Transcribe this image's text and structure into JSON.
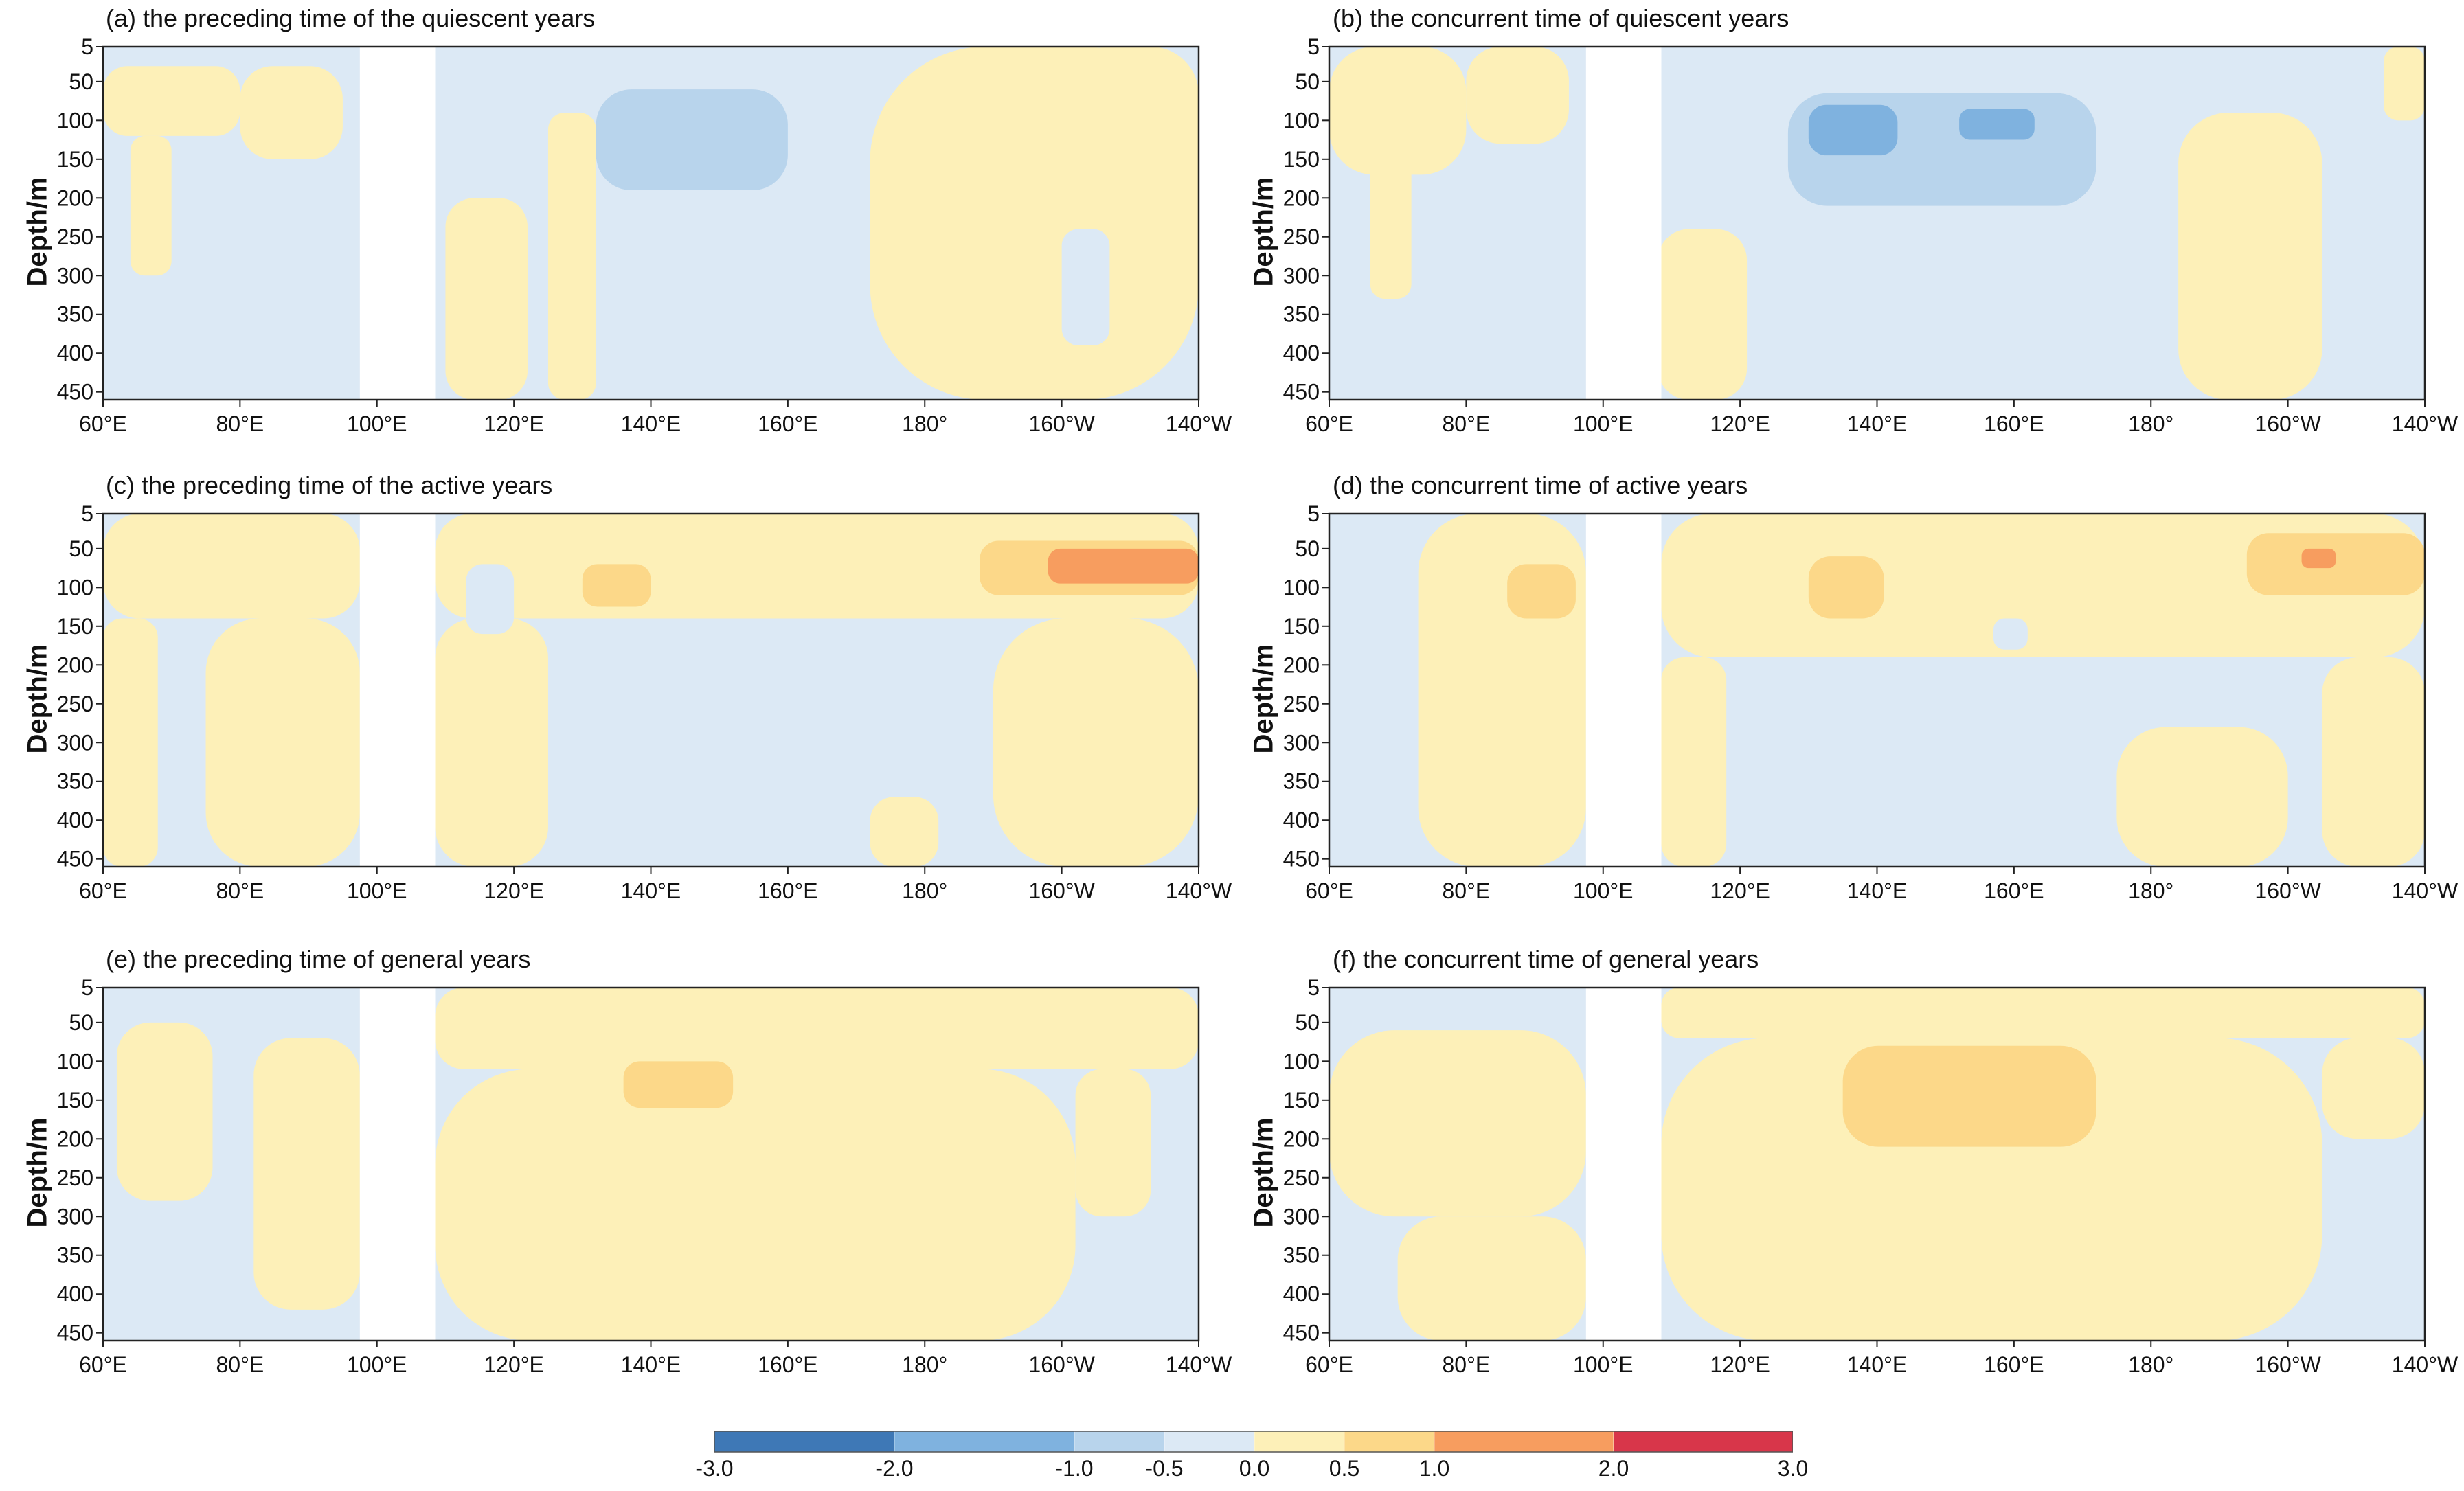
{
  "chart_data": [
    {
      "type": "heatmap",
      "id": "a",
      "title": "(a) the preceding time of the quiescent years",
      "ylabel": "Depth/m",
      "yticks": [
        "5",
        "50",
        "100",
        "150",
        "200",
        "250",
        "300",
        "350",
        "400",
        "450"
      ],
      "xticks": [
        "60°E",
        "80°E",
        "100°E",
        "120°E",
        "140°E",
        "160°E",
        "180°",
        "160°W",
        "140°W"
      ],
      "xlim_deg": [
        60,
        220
      ],
      "ylim_m": [
        5,
        460
      ],
      "land_gap_deg": [
        97.5,
        108.5
      ],
      "background_level": "-0.5~0.0",
      "anomalies": [
        {
          "level": "0.0~0.5",
          "lon": [
            60,
            80
          ],
          "depth": [
            30,
            120
          ]
        },
        {
          "level": "0.0~0.5",
          "lon": [
            64,
            70
          ],
          "depth": [
            120,
            300
          ]
        },
        {
          "level": "0.0~0.5",
          "lon": [
            80,
            95
          ],
          "depth": [
            30,
            150
          ]
        },
        {
          "level": "0.0~0.5",
          "lon": [
            110,
            122
          ],
          "depth": [
            200,
            460
          ]
        },
        {
          "level": "0.0~0.5",
          "lon": [
            125,
            132
          ],
          "depth": [
            90,
            460
          ]
        },
        {
          "level": "0.0~0.5",
          "lon": [
            172,
            220
          ],
          "depth": [
            5,
            460
          ]
        },
        {
          "level": "0.0~0.5",
          "lon": [
            200,
            220
          ],
          "depth": [
            5,
            200
          ]
        },
        {
          "level": "-1.0~-0.5",
          "lon": [
            132,
            160
          ],
          "depth": [
            60,
            190
          ]
        },
        {
          "level": "-0.5~0.0",
          "lon": [
            200,
            207
          ],
          "depth": [
            240,
            390
          ]
        }
      ]
    },
    {
      "type": "heatmap",
      "id": "b",
      "title": "(b) the concurrent time of quiescent years",
      "ylabel": "Depth/m",
      "yticks": [
        "5",
        "50",
        "100",
        "150",
        "200",
        "250",
        "300",
        "350",
        "400",
        "450"
      ],
      "xticks": [
        "60°E",
        "80°E",
        "100°E",
        "120°E",
        "140°E",
        "160°E",
        "180°",
        "160°W",
        "140°W"
      ],
      "xlim_deg": [
        60,
        220
      ],
      "ylim_m": [
        5,
        460
      ],
      "land_gap_deg": [
        97.5,
        108.5
      ],
      "background_level": "-0.5~0.0",
      "anomalies": [
        {
          "level": "0.0~0.5",
          "lon": [
            60,
            80
          ],
          "depth": [
            5,
            170
          ]
        },
        {
          "level": "0.0~0.5",
          "lon": [
            66,
            72
          ],
          "depth": [
            150,
            330
          ]
        },
        {
          "level": "0.0~0.5",
          "lon": [
            80,
            95
          ],
          "depth": [
            5,
            130
          ]
        },
        {
          "level": "0.0~0.5",
          "lon": [
            108,
            121
          ],
          "depth": [
            240,
            460
          ]
        },
        {
          "level": "0.0~0.5",
          "lon": [
            184,
            205
          ],
          "depth": [
            90,
            460
          ]
        },
        {
          "level": "0.0~0.5",
          "lon": [
            214,
            220
          ],
          "depth": [
            5,
            100
          ]
        },
        {
          "level": "-1.0~-0.5",
          "lon": [
            127,
            172
          ],
          "depth": [
            65,
            210
          ]
        },
        {
          "level": "-2.0~-1.0",
          "lon": [
            130,
            143
          ],
          "depth": [
            80,
            145
          ]
        },
        {
          "level": "-2.0~-1.0",
          "lon": [
            152,
            163
          ],
          "depth": [
            85,
            125
          ]
        }
      ]
    },
    {
      "type": "heatmap",
      "id": "c",
      "title": "(c) the preceding time of the active years",
      "ylabel": "Depth/m",
      "yticks": [
        "5",
        "50",
        "100",
        "150",
        "200",
        "250",
        "300",
        "350",
        "400",
        "450"
      ],
      "xticks": [
        "60°E",
        "80°E",
        "100°E",
        "120°E",
        "140°E",
        "160°E",
        "180°",
        "160°W",
        "140°W"
      ],
      "xlim_deg": [
        60,
        220
      ],
      "ylim_m": [
        5,
        460
      ],
      "land_gap_deg": [
        97.5,
        108.5
      ],
      "background_level": "-0.5~0.0",
      "anomalies": [
        {
          "level": "0.0~0.5",
          "lon": [
            60,
            97.5
          ],
          "depth": [
            5,
            140
          ]
        },
        {
          "level": "0.0~0.5",
          "lon": [
            60,
            68
          ],
          "depth": [
            140,
            460
          ]
        },
        {
          "level": "0.0~0.5",
          "lon": [
            75,
            97.5
          ],
          "depth": [
            140,
            460
          ]
        },
        {
          "level": "0.0~0.5",
          "lon": [
            108.5,
            220
          ],
          "depth": [
            5,
            140
          ]
        },
        {
          "level": "0.0~0.5",
          "lon": [
            108.5,
            125
          ],
          "depth": [
            140,
            460
          ]
        },
        {
          "level": "0.0~0.5",
          "lon": [
            190,
            220
          ],
          "depth": [
            140,
            460
          ]
        },
        {
          "level": "0.0~0.5",
          "lon": [
            172,
            182
          ],
          "depth": [
            370,
            460
          ]
        },
        {
          "level": "-0.5~0.0",
          "lon": [
            113,
            120
          ],
          "depth": [
            70,
            160
          ]
        },
        {
          "level": "0.5~1.0",
          "lon": [
            130,
            140
          ],
          "depth": [
            70,
            125
          ]
        },
        {
          "level": "0.5~1.0",
          "lon": [
            188,
            220
          ],
          "depth": [
            40,
            110
          ]
        },
        {
          "level": "1.0~2.0",
          "lon": [
            198,
            220
          ],
          "depth": [
            50,
            95
          ]
        }
      ]
    },
    {
      "type": "heatmap",
      "id": "d",
      "title": "(d) the concurrent time of active years",
      "ylabel": "Depth/m",
      "yticks": [
        "5",
        "50",
        "100",
        "150",
        "200",
        "250",
        "300",
        "350",
        "400",
        "450"
      ],
      "xticks": [
        "60°E",
        "80°E",
        "100°E",
        "120°E",
        "140°E",
        "160°E",
        "180°",
        "160°W",
        "140°W"
      ],
      "xlim_deg": [
        60,
        220
      ],
      "ylim_m": [
        5,
        460
      ],
      "land_gap_deg": [
        97.5,
        108.5
      ],
      "background_level": "-0.5~0.0",
      "anomalies": [
        {
          "level": "0.0~0.5",
          "lon": [
            73,
            97.5
          ],
          "depth": [
            5,
            460
          ]
        },
        {
          "level": "0.0~0.5",
          "lon": [
            108.5,
            220
          ],
          "depth": [
            5,
            190
          ]
        },
        {
          "level": "0.0~0.5",
          "lon": [
            108.5,
            118
          ],
          "depth": [
            190,
            460
          ]
        },
        {
          "level": "0.0~0.5",
          "lon": [
            175,
            200
          ],
          "depth": [
            280,
            460
          ]
        },
        {
          "level": "0.0~0.5",
          "lon": [
            205,
            220
          ],
          "depth": [
            190,
            460
          ]
        },
        {
          "level": "-0.5~0.0",
          "lon": [
            67,
            73
          ],
          "depth": [
            60,
            120
          ]
        },
        {
          "level": "-0.5~0.0",
          "lon": [
            157,
            162
          ],
          "depth": [
            140,
            180
          ]
        },
        {
          "level": "0.5~1.0",
          "lon": [
            86,
            96
          ],
          "depth": [
            70,
            140
          ]
        },
        {
          "level": "0.5~1.0",
          "lon": [
            130,
            141
          ],
          "depth": [
            60,
            140
          ]
        },
        {
          "level": "0.5~1.0",
          "lon": [
            194,
            220
          ],
          "depth": [
            30,
            110
          ]
        },
        {
          "level": "1.0~2.0",
          "lon": [
            202,
            207
          ],
          "depth": [
            50,
            75
          ]
        }
      ]
    },
    {
      "type": "heatmap",
      "id": "e",
      "title": "(e) the preceding time of general years",
      "ylabel": "Depth/m",
      "yticks": [
        "5",
        "50",
        "100",
        "150",
        "200",
        "250",
        "300",
        "350",
        "400",
        "450"
      ],
      "xticks": [
        "60°E",
        "80°E",
        "100°E",
        "120°E",
        "140°E",
        "160°E",
        "180°",
        "160°W",
        "140°W"
      ],
      "xlim_deg": [
        60,
        220
      ],
      "ylim_m": [
        5,
        460
      ],
      "land_gap_deg": [
        97.5,
        108.5
      ],
      "background_level": "-0.5~0.0",
      "anomalies": [
        {
          "level": "0.0~0.5",
          "lon": [
            62,
            76
          ],
          "depth": [
            50,
            280
          ]
        },
        {
          "level": "0.0~0.5",
          "lon": [
            82,
            97.5
          ],
          "depth": [
            70,
            420
          ]
        },
        {
          "level": "0.0~0.5",
          "lon": [
            108.5,
            220
          ],
          "depth": [
            5,
            110
          ]
        },
        {
          "level": "0.0~0.5",
          "lon": [
            108.5,
            202
          ],
          "depth": [
            110,
            460
          ]
        },
        {
          "level": "0.0~0.5",
          "lon": [
            202,
            213
          ],
          "depth": [
            110,
            300
          ]
        },
        {
          "level": "0.5~1.0",
          "lon": [
            136,
            152
          ],
          "depth": [
            100,
            160
          ]
        }
      ]
    },
    {
      "type": "heatmap",
      "id": "f",
      "title": "(f) the concurrent time of general years",
      "ylabel": "Depth/m",
      "yticks": [
        "5",
        "50",
        "100",
        "150",
        "200",
        "250",
        "300",
        "350",
        "400",
        "450"
      ],
      "xticks": [
        "60°E",
        "80°E",
        "100°E",
        "120°E",
        "140°E",
        "160°E",
        "180°",
        "160°W",
        "140°W"
      ],
      "xlim_deg": [
        60,
        220
      ],
      "ylim_m": [
        5,
        460
      ],
      "land_gap_deg": [
        97.5,
        108.5
      ],
      "background_level": "-0.5~0.0",
      "anomalies": [
        {
          "level": "0.0~0.5",
          "lon": [
            60,
            97.5
          ],
          "depth": [
            60,
            300
          ]
        },
        {
          "level": "0.0~0.5",
          "lon": [
            70,
            97.5
          ],
          "depth": [
            300,
            460
          ]
        },
        {
          "level": "0.0~0.5",
          "lon": [
            108.5,
            220
          ],
          "depth": [
            5,
            70
          ]
        },
        {
          "level": "0.0~0.5",
          "lon": [
            108.5,
            205
          ],
          "depth": [
            70,
            460
          ]
        },
        {
          "level": "0.0~0.5",
          "lon": [
            205,
            220
          ],
          "depth": [
            70,
            200
          ]
        },
        {
          "level": "0.5~1.0",
          "lon": [
            135,
            172
          ],
          "depth": [
            80,
            210
          ]
        }
      ]
    }
  ],
  "colorbar": {
    "levels": [
      "-3.0~-2.0",
      "-2.0~-1.0",
      "-1.0~-0.5",
      "-0.5~0.0",
      "0.0~0.5",
      "0.5~1.0",
      "1.0~2.0",
      "2.0~3.0"
    ],
    "colors": [
      "#3e78b6",
      "#7fb2df",
      "#b8d4ec",
      "#dce9f5",
      "#fdf0b8",
      "#fcd889",
      "#f79d5f",
      "#d8364a"
    ],
    "tick_labels": [
      "-3.0",
      "-2.0",
      "-1.0",
      "-0.5",
      "0.0",
      "0.5",
      "1.0",
      "2.0",
      "3.0"
    ],
    "tick_values": [
      -3.0,
      -2.0,
      -1.0,
      -0.5,
      0.0,
      0.5,
      1.0,
      2.0,
      3.0
    ]
  }
}
